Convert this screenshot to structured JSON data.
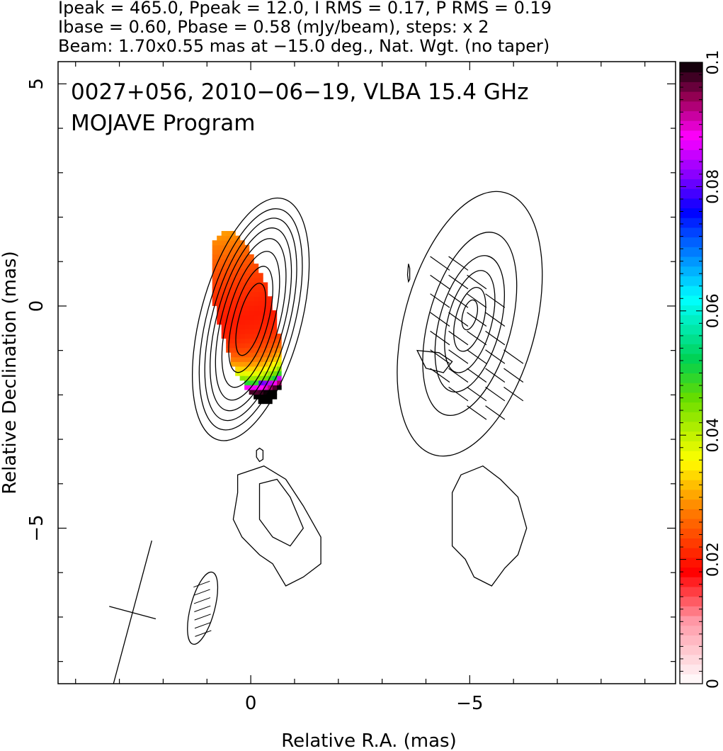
{
  "header": {
    "line1": "Ipeak = 465.0, Ppeak = 12.0, I RMS = 0.17, P RMS = 0.19",
    "line2": "Ibase = 0.60, Pbase = 0.58 (mJy/beam), steps: x 2",
    "line3": "Beam: 1.70x0.55 mas at −15.0 deg., Nat. Wgt. (no taper)"
  },
  "chart_data": {
    "type": "heatmap",
    "title": "0027+056, 2010−06−19, VLBA 15.4 GHz",
    "subtitle": "MOJAVE Program",
    "xlabel": "Relative R.A. (mas)",
    "ylabel": "Relative Declination (mas)",
    "xlim": [
      4.4,
      -9.7
    ],
    "ylim": [
      -8.5,
      5.5
    ],
    "x_ticks": [
      {
        "value": 0,
        "label": "0"
      },
      {
        "value": -5,
        "label": "−5"
      }
    ],
    "y_ticks": [
      {
        "value": 5,
        "label": "5"
      },
      {
        "value": 0,
        "label": "0"
      },
      {
        "value": -5,
        "label": "−5"
      }
    ],
    "colorbar": {
      "range": [
        0,
        0.1
      ],
      "ticks": [
        {
          "value": 0.1,
          "label": "0.1"
        },
        {
          "value": 0.08,
          "label": "0.08"
        },
        {
          "value": 0.06,
          "label": "0.06"
        },
        {
          "value": 0.04,
          "label": "0.04"
        },
        {
          "value": 0.02,
          "label": "0.02"
        },
        {
          "value": 0,
          "label": "0"
        }
      ],
      "stops": [
        {
          "value": 0.0,
          "color": "#ffffff"
        },
        {
          "value": 0.01,
          "color": "#ff9aa8"
        },
        {
          "value": 0.018,
          "color": "#ff0000"
        },
        {
          "value": 0.028,
          "color": "#ff7f00"
        },
        {
          "value": 0.036,
          "color": "#ffff00"
        },
        {
          "value": 0.046,
          "color": "#66dd00"
        },
        {
          "value": 0.052,
          "color": "#00d050"
        },
        {
          "value": 0.062,
          "color": "#00ffff"
        },
        {
          "value": 0.072,
          "color": "#0050ff"
        },
        {
          "value": 0.076,
          "color": "#0000ff"
        },
        {
          "value": 0.082,
          "color": "#8a00ff"
        },
        {
          "value": 0.088,
          "color": "#ff00ff"
        },
        {
          "value": 0.094,
          "color": "#a0005a"
        },
        {
          "value": 0.1,
          "color": "#000000"
        }
      ]
    },
    "total_intensity_panel": {
      "center": [
        0.0,
        -0.3
      ],
      "contour_levels_mjy_per_beam": [
        0.6,
        1.2,
        2.4,
        4.8,
        9.6,
        19.2,
        38.4,
        76.8,
        153.6,
        307.2
      ],
      "contours": [
        {
          "cx": 0.0,
          "cy": -0.3,
          "a": 2.85,
          "b": 1.15,
          "pa_deg": -15
        },
        {
          "cx": 0.0,
          "cy": -0.3,
          "a": 2.6,
          "b": 1.0,
          "pa_deg": -15
        },
        {
          "cx": 0.0,
          "cy": -0.3,
          "a": 2.38,
          "b": 0.88,
          "pa_deg": -15
        },
        {
          "cx": 0.0,
          "cy": -0.3,
          "a": 2.15,
          "b": 0.77,
          "pa_deg": -15
        },
        {
          "cx": 0.0,
          "cy": -0.3,
          "a": 1.9,
          "b": 0.66,
          "pa_deg": -15
        },
        {
          "cx": 0.0,
          "cy": -0.3,
          "a": 1.6,
          "b": 0.53,
          "pa_deg": -15
        },
        {
          "cx": 0.0,
          "cy": -0.3,
          "a": 1.25,
          "b": 0.4,
          "pa_deg": -15
        },
        {
          "cx": 0.0,
          "cy": -0.3,
          "a": 0.85,
          "b": 0.27,
          "pa_deg": -15
        }
      ],
      "fractional_pol_region": {
        "cx": 0.15,
        "cy": -0.3,
        "a": 2.0,
        "b": 0.65,
        "pa_deg": -15
      }
    },
    "polarized_intensity_panel": {
      "center": [
        -5.0,
        -0.3
      ],
      "contours": [
        {
          "cx": -5.0,
          "cy": -0.4,
          "a": 3.1,
          "b": 1.5,
          "pa_deg": -15
        },
        {
          "cx": -5.0,
          "cy": -0.4,
          "a": 2.15,
          "b": 0.95,
          "pa_deg": -15
        },
        {
          "cx": -5.0,
          "cy": -0.4,
          "a": 1.6,
          "b": 0.7,
          "pa_deg": -15
        },
        {
          "cx": -5.0,
          "cy": -0.35,
          "a": 1.2,
          "b": 0.5,
          "pa_deg": -15
        },
        {
          "cx": -5.0,
          "cy": -0.3,
          "a": 0.75,
          "b": 0.32,
          "pa_deg": -15
        },
        {
          "cx": -5.0,
          "cy": -0.2,
          "a": 0.35,
          "b": 0.16,
          "pa_deg": -15
        }
      ]
    },
    "beam": {
      "major_mas": 1.7,
      "minor_mas": 0.55,
      "pa_deg": -15,
      "position": [
        1.1,
        -6.8
      ]
    },
    "cross_marker": {
      "position": [
        2.7,
        -6.9
      ],
      "pa_deg": -15
    }
  }
}
